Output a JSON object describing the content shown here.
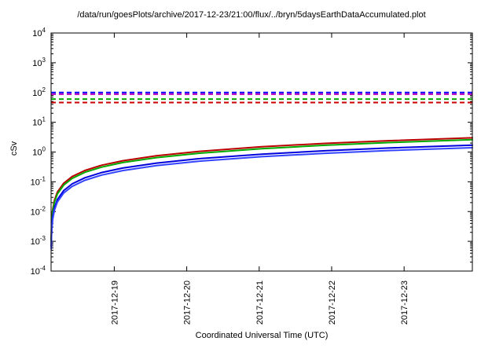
{
  "chart_data": {
    "type": "line",
    "title": "/data/run/goesPlots/archive/2017-12-23/21:00/flux/../bryn/5daysEarthDataAccumulated.plot",
    "xlabel": "Coordinated Universal Time (UTC)",
    "ylabel": "cSv",
    "y_scale": "log",
    "ylim": [
      0.0001,
      10000
    ],
    "y_tick_exponents": [
      4,
      3,
      2,
      1,
      0,
      -1,
      -2,
      -3,
      -4
    ],
    "x_ticks": [
      {
        "label": "2017-12-19",
        "pos": 0.15
      },
      {
        "label": "2017-12-20",
        "pos": 0.322
      },
      {
        "label": "2017-12-21",
        "pos": 0.494
      },
      {
        "label": "2017-12-22",
        "pos": 0.666
      },
      {
        "label": "2017-12-23",
        "pos": 0.838
      }
    ],
    "reference_lines": [
      {
        "name": "threshold-blue",
        "value": 100,
        "color": "#0000ff"
      },
      {
        "name": "threshold-magenta",
        "value": 88,
        "color": "#bb00bb"
      },
      {
        "name": "threshold-green",
        "value": 60,
        "color": "#00aa00"
      },
      {
        "name": "threshold-red",
        "value": 46,
        "color": "#cc0000"
      }
    ],
    "t": [
      0.0004,
      0.001,
      0.002,
      0.004,
      0.008,
      0.015,
      0.03,
      0.05,
      0.08,
      0.12,
      0.17,
      0.25,
      0.35,
      0.5,
      0.65,
      0.8,
      1.0
    ],
    "series": [
      {
        "name": "accumulated-dose-red",
        "color": "#bb0000",
        "values": [
          0.0012,
          0.003,
          0.006,
          0.012,
          0.024,
          0.045,
          0.09,
          0.15,
          0.24,
          0.36,
          0.51,
          0.75,
          1.05,
          1.5,
          1.95,
          2.4,
          3.0
        ]
      },
      {
        "name": "accumulated-dose-green",
        "color": "#00aa00",
        "values": [
          0.00104,
          0.0026,
          0.0052,
          0.0104,
          0.0208,
          0.039,
          0.078,
          0.13,
          0.208,
          0.312,
          0.442,
          0.65,
          0.91,
          1.3,
          1.69,
          2.08,
          2.6
        ]
      },
      {
        "name": "accumulated-dose-blue-1",
        "color": "#0000dd",
        "values": [
          0.00068,
          0.0017,
          0.0034,
          0.0068,
          0.0136,
          0.0255,
          0.051,
          0.085,
          0.136,
          0.204,
          0.289,
          0.425,
          0.595,
          0.85,
          1.105,
          1.36,
          1.7
        ]
      },
      {
        "name": "accumulated-dose-blue-2",
        "color": "#3344ff",
        "values": [
          0.00056,
          0.0014,
          0.0028,
          0.0056,
          0.0112,
          0.021,
          0.042,
          0.07,
          0.112,
          0.168,
          0.238,
          0.35,
          0.49,
          0.7,
          0.91,
          1.12,
          1.4
        ]
      }
    ]
  }
}
